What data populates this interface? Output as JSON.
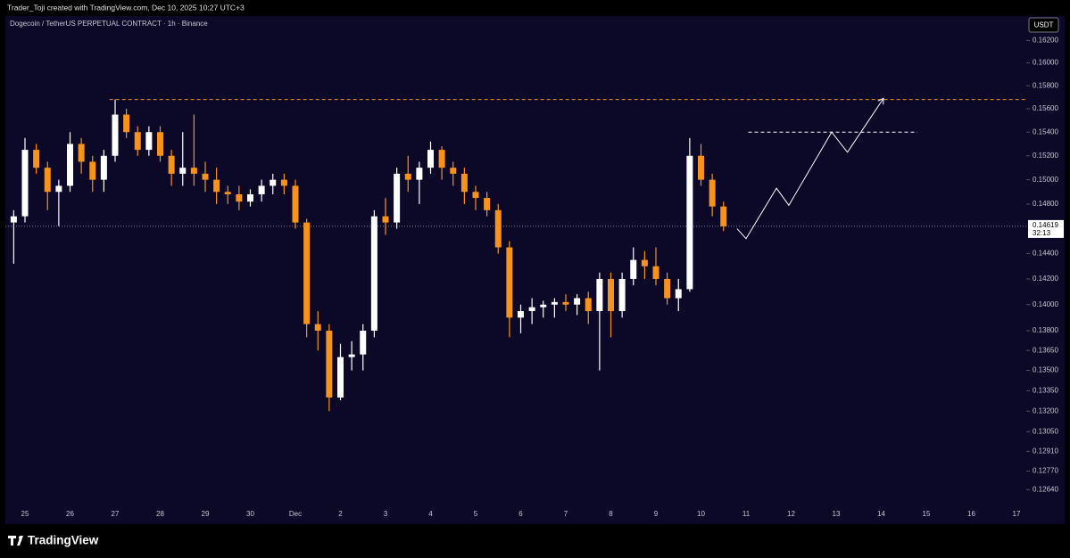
{
  "chart_data": {
    "type": "candlestick",
    "attribution": "Trader_Toji created with TradingView.com, Dec 10, 2025 10:27 UTC+3",
    "title": "Dogecoin / TetherUS PERPETUAL CONTRACT · 1h · Binance",
    "currency": "USDT",
    "brand": "TradingView",
    "categories": [
      null,
      "25",
      null,
      null,
      null,
      "26",
      null,
      null,
      null,
      "27",
      null,
      null,
      null,
      "28",
      null,
      null,
      null,
      "29",
      null,
      null,
      null,
      "30",
      null,
      null,
      null,
      "Dec",
      null,
      null,
      null,
      "2",
      null,
      null,
      null,
      "3",
      null,
      null,
      null,
      "4",
      null,
      null,
      null,
      "5",
      null,
      null,
      null,
      "6",
      null,
      null,
      null,
      "7",
      null,
      null,
      null,
      "8",
      null,
      null,
      null,
      "9",
      null,
      null,
      null,
      "10",
      null,
      null,
      null,
      "11",
      null,
      null,
      null,
      "12",
      null,
      null,
      null,
      "13",
      null,
      null,
      null,
      "14",
      null,
      null,
      null,
      "15",
      null,
      null,
      null,
      "16",
      null,
      null,
      null,
      "17"
    ],
    "series": [
      {
        "up_color": "#ffffff",
        "down_color": "#f7931a",
        "open": [
          0.1465,
          0.147,
          0.1525,
          0.151,
          0.149,
          0.1495,
          0.153,
          0.1515,
          0.15,
          0.152,
          0.1555,
          0.154,
          0.1525,
          0.154,
          0.152,
          0.1505,
          0.151,
          0.1505,
          0.15,
          0.149,
          0.1488,
          0.1482,
          0.1488,
          0.1495,
          0.15,
          0.1495,
          0.1465,
          0.1385,
          0.138,
          0.133,
          0.136,
          0.1362,
          0.138,
          0.147,
          0.1465,
          0.1505,
          0.15,
          0.151,
          0.1525,
          0.151,
          0.1505,
          0.149,
          0.1485,
          0.1475,
          0.1445,
          0.139,
          0.1395,
          0.1398,
          0.14,
          0.1402,
          0.14,
          0.1405,
          0.1395,
          0.142,
          0.1395,
          0.142,
          0.1435,
          0.143,
          0.142,
          0.1405,
          0.1412,
          0.152,
          0.15,
          0.1478,
          null,
          null,
          null,
          null,
          null,
          null,
          null,
          null,
          null,
          null,
          null,
          null,
          null,
          null,
          null,
          null,
          null,
          null,
          null,
          null,
          null,
          null,
          null,
          null,
          null,
          null
        ],
        "high": [
          0.1475,
          0.1535,
          0.153,
          0.1515,
          0.15,
          0.154,
          0.1535,
          0.152,
          0.1525,
          0.1568,
          0.156,
          0.1545,
          0.1545,
          0.1545,
          0.1525,
          0.154,
          0.1555,
          0.1515,
          0.151,
          0.1495,
          0.1495,
          0.1492,
          0.15,
          0.1505,
          0.1505,
          0.15,
          0.1468,
          0.1395,
          0.1385,
          0.137,
          0.1372,
          0.1385,
          0.1475,
          0.1485,
          0.151,
          0.152,
          0.1515,
          0.1532,
          0.1528,
          0.1515,
          0.151,
          0.1495,
          0.149,
          0.148,
          0.145,
          0.14,
          0.1405,
          0.1403,
          0.1405,
          0.1408,
          0.1408,
          0.141,
          0.1425,
          0.1425,
          0.1425,
          0.1445,
          0.1442,
          0.1445,
          0.1425,
          0.142,
          0.1535,
          0.153,
          0.1505,
          0.1482,
          null,
          null,
          null,
          null,
          null,
          null,
          null,
          null,
          null,
          null,
          null,
          null,
          null,
          null,
          null,
          null,
          null,
          null,
          null,
          null,
          null,
          null,
          null,
          null,
          null,
          null
        ],
        "low": [
          0.1432,
          0.1465,
          0.1505,
          0.1475,
          0.1462,
          0.149,
          0.1505,
          0.149,
          0.149,
          0.1515,
          0.1535,
          0.152,
          0.152,
          0.1515,
          0.1495,
          0.1495,
          0.1495,
          0.149,
          0.148,
          0.148,
          0.1475,
          0.1478,
          0.1482,
          0.1488,
          0.1488,
          0.146,
          0.1375,
          0.1365,
          0.132,
          0.1328,
          0.135,
          0.135,
          0.1375,
          0.1455,
          0.146,
          0.149,
          0.148,
          0.1505,
          0.15,
          0.1495,
          0.148,
          0.1475,
          0.147,
          0.144,
          0.1375,
          0.1378,
          0.1385,
          0.139,
          0.139,
          0.1395,
          0.1392,
          0.1385,
          0.135,
          0.1375,
          0.139,
          0.1415,
          0.142,
          0.1415,
          0.14,
          0.1395,
          0.141,
          0.1495,
          0.147,
          0.1458,
          null,
          null,
          null,
          null,
          null,
          null,
          null,
          null,
          null,
          null,
          null,
          null,
          null,
          null,
          null,
          null,
          null,
          null,
          null,
          null,
          null,
          null,
          null,
          null,
          null,
          null
        ],
        "close": [
          0.147,
          0.1525,
          0.151,
          0.149,
          0.1495,
          0.153,
          0.1515,
          0.15,
          0.152,
          0.1555,
          0.154,
          0.1525,
          0.154,
          0.152,
          0.1505,
          0.151,
          0.1505,
          0.15,
          0.149,
          0.1488,
          0.1482,
          0.1488,
          0.1495,
          0.15,
          0.1495,
          0.1465,
          0.1385,
          0.138,
          0.133,
          0.136,
          0.1362,
          0.138,
          0.147,
          0.1465,
          0.1505,
          0.15,
          0.151,
          0.1525,
          0.151,
          0.1505,
          0.149,
          0.1485,
          0.1475,
          0.1445,
          0.139,
          0.1395,
          0.1398,
          0.14,
          0.1402,
          0.14,
          0.1405,
          0.1395,
          0.142,
          0.1395,
          0.142,
          0.1435,
          0.143,
          0.142,
          0.1405,
          0.1412,
          0.152,
          0.15,
          0.1478,
          0.14619,
          null,
          null,
          null,
          null,
          null,
          null,
          null,
          null,
          null,
          null,
          null,
          null,
          null,
          null,
          null,
          null,
          null,
          null,
          null,
          null,
          null,
          null,
          null,
          null,
          null,
          null
        ]
      }
    ],
    "ylim": [
      0.1253,
      0.1642
    ],
    "log_scale": true,
    "yticks": [
      {
        "value": 0.162,
        "label": "0.16200"
      },
      {
        "value": 0.16,
        "label": "0.16000"
      },
      {
        "value": 0.158,
        "label": "0.15800"
      },
      {
        "value": 0.156,
        "label": "0.15600"
      },
      {
        "value": 0.154,
        "label": "0.15400"
      },
      {
        "value": 0.152,
        "label": "0.15200"
      },
      {
        "value": 0.15,
        "label": "0.15000"
      },
      {
        "value": 0.148,
        "label": "0.14800"
      },
      {
        "value": 0.144,
        "label": "0.14400"
      },
      {
        "value": 0.142,
        "label": "0.14200"
      },
      {
        "value": 0.14,
        "label": "0.14000"
      },
      {
        "value": 0.138,
        "label": "0.13800"
      },
      {
        "value": 0.1365,
        "label": "0.13650"
      },
      {
        "value": 0.135,
        "label": "0.13500"
      },
      {
        "value": 0.1335,
        "label": "0.13350"
      },
      {
        "value": 0.132,
        "label": "0.13200"
      },
      {
        "value": 0.1305,
        "label": "0.13050"
      },
      {
        "value": 0.1291,
        "label": "0.12910"
      },
      {
        "value": 0.1277,
        "label": "0.12770"
      },
      {
        "value": 0.1264,
        "label": "0.12640"
      }
    ],
    "current_price": {
      "value": 0.14619,
      "label": "0.14619"
    },
    "countdown": "32:13",
    "levels": [
      {
        "value": 0.1568,
        "start": 8.5,
        "end": 89.9,
        "color": "#f7931a"
      },
      {
        "value": 0.154,
        "start": 65.2,
        "end": 80.2,
        "color": "#ffffff"
      }
    ],
    "projection": {
      "x": [
        64.2,
        65.0,
        67.7,
        68.8,
        72.6,
        74.0,
        77.2
      ],
      "y": [
        0.146,
        0.1452,
        0.1493,
        0.1479,
        0.154,
        0.1523,
        0.1569
      ],
      "color": "#ffffff"
    }
  }
}
